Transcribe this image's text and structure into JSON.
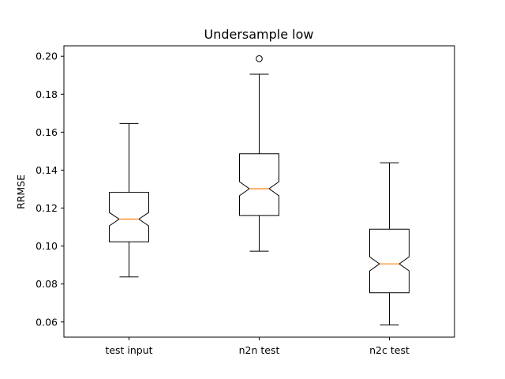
{
  "chart_data": {
    "type": "boxplot",
    "title": "Undersample low",
    "xlabel": "",
    "ylabel": "RRMSE",
    "ylim": [
      0.052,
      0.2055
    ],
    "yticks": [
      0.06,
      0.08,
      0.1,
      0.12,
      0.14,
      0.16,
      0.18,
      0.2
    ],
    "ytick_labels": [
      "0.06",
      "0.08",
      "0.10",
      "0.12",
      "0.14",
      "0.16",
      "0.18",
      "0.20"
    ],
    "notched": true,
    "grid": false,
    "categories": [
      "test input",
      "n2n test",
      "n2c test"
    ],
    "boxes": [
      {
        "whislo": 0.0837,
        "q1": 0.1022,
        "notch_lo": 0.1106,
        "med": 0.1142,
        "notch_hi": 0.1177,
        "q3": 0.1283,
        "whishi": 0.1646,
        "fliers": []
      },
      {
        "whislo": 0.0973,
        "q1": 0.1161,
        "notch_lo": 0.1265,
        "med": 0.1302,
        "notch_hi": 0.1339,
        "q3": 0.1486,
        "whishi": 0.1905,
        "fliers": [
          0.1987
        ]
      },
      {
        "whislo": 0.0584,
        "q1": 0.0754,
        "notch_lo": 0.0869,
        "med": 0.0906,
        "notch_hi": 0.0943,
        "q3": 0.1089,
        "whishi": 0.1439,
        "fliers": []
      }
    ],
    "colors": {
      "box": "#000000",
      "median": "#ff7f0e",
      "axes": "#000000"
    }
  }
}
